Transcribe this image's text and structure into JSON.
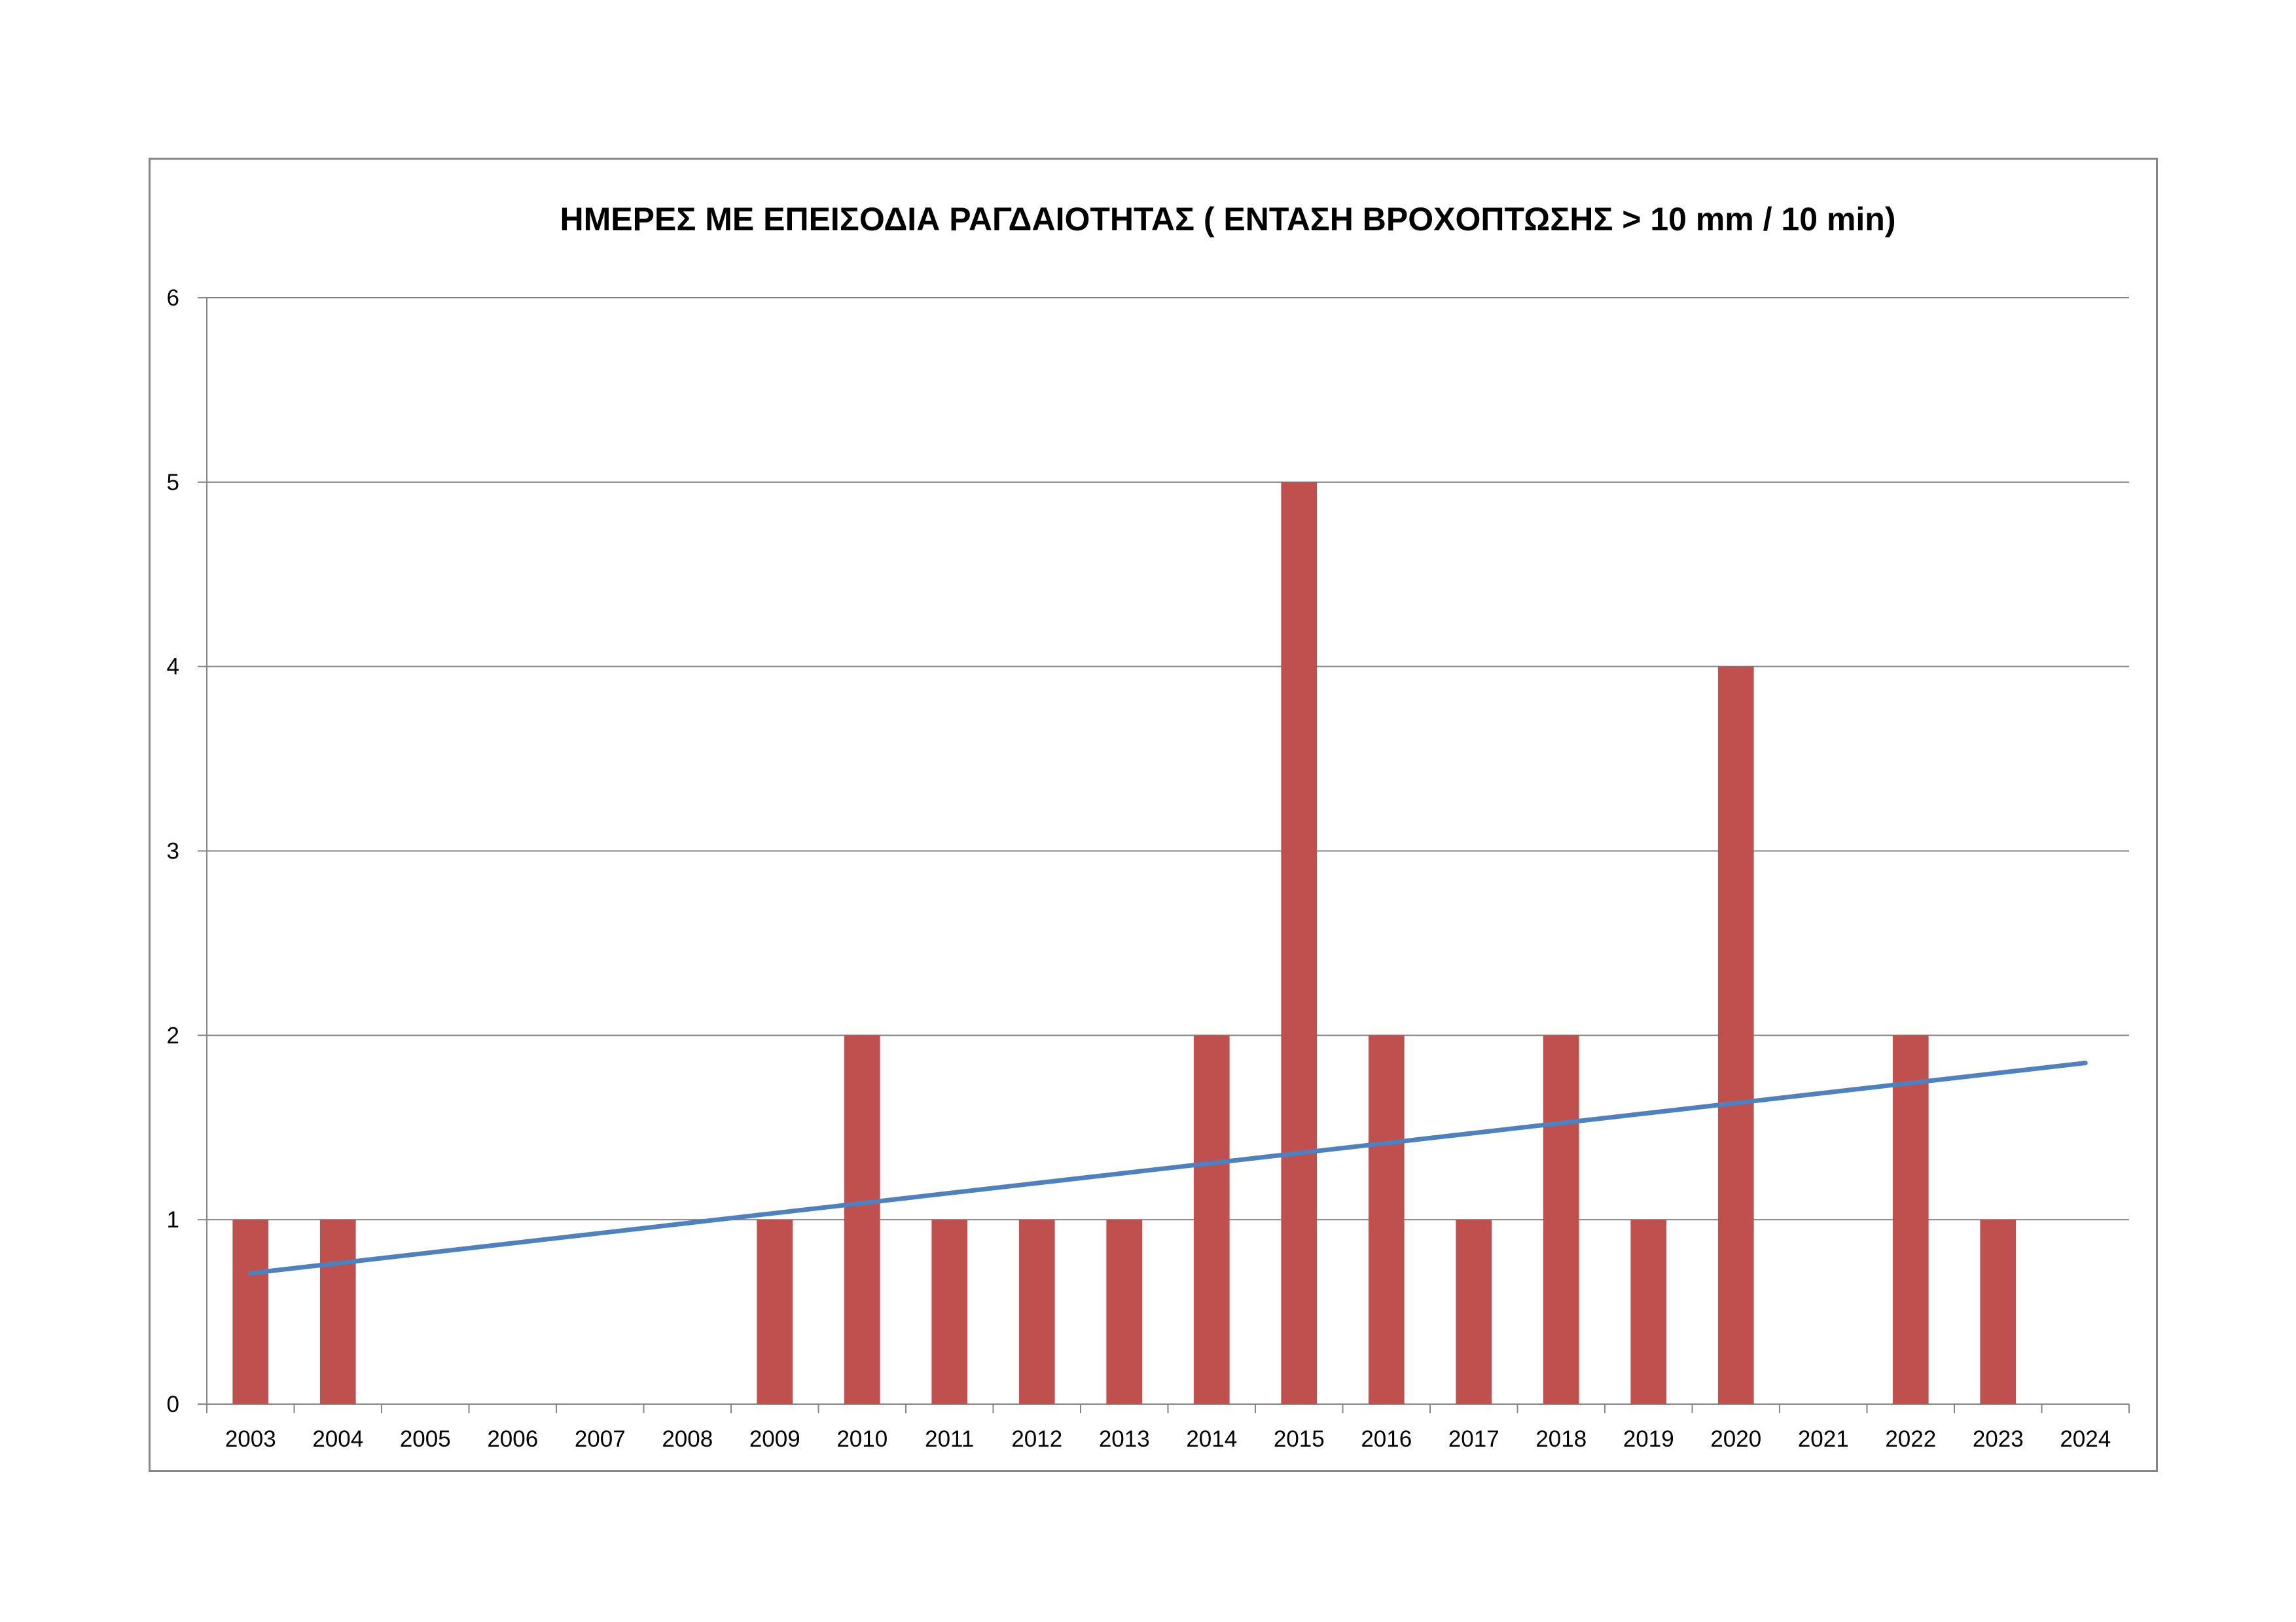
{
  "chart_data": {
    "type": "bar",
    "title": "ΗΜΕΡΕΣ ΜΕ ΕΠΕΙΣΟΔΙΑ ΡΑΓΔΑΙΟΤΗΤΑΣ ( ΕΝΤΑΣΗ ΒΡΟΧΟΠΤΩΣΗΣ > 10 mm / 10 min)",
    "xlabel": "",
    "ylabel": "",
    "categories": [
      "2003",
      "2004",
      "2005",
      "2006",
      "2007",
      "2008",
      "2009",
      "2010",
      "2011",
      "2012",
      "2013",
      "2014",
      "2015",
      "2016",
      "2017",
      "2018",
      "2019",
      "2020",
      "2021",
      "2022",
      "2023",
      "2024"
    ],
    "series": [
      {
        "values": [
          1,
          1,
          0,
          0,
          0,
          0,
          1,
          2,
          1,
          1,
          1,
          2,
          5,
          2,
          1,
          2,
          1,
          4,
          0,
          2,
          1,
          0
        ],
        "color": "#C0504D"
      }
    ],
    "trendline": {
      "type": "linear",
      "start": 0.71,
      "end": 1.85,
      "color": "#4F81BD"
    },
    "ylim": [
      0,
      6
    ],
    "yticks": [
      0,
      1,
      2,
      3,
      4,
      5,
      6
    ],
    "grid": true,
    "legend": "none"
  }
}
